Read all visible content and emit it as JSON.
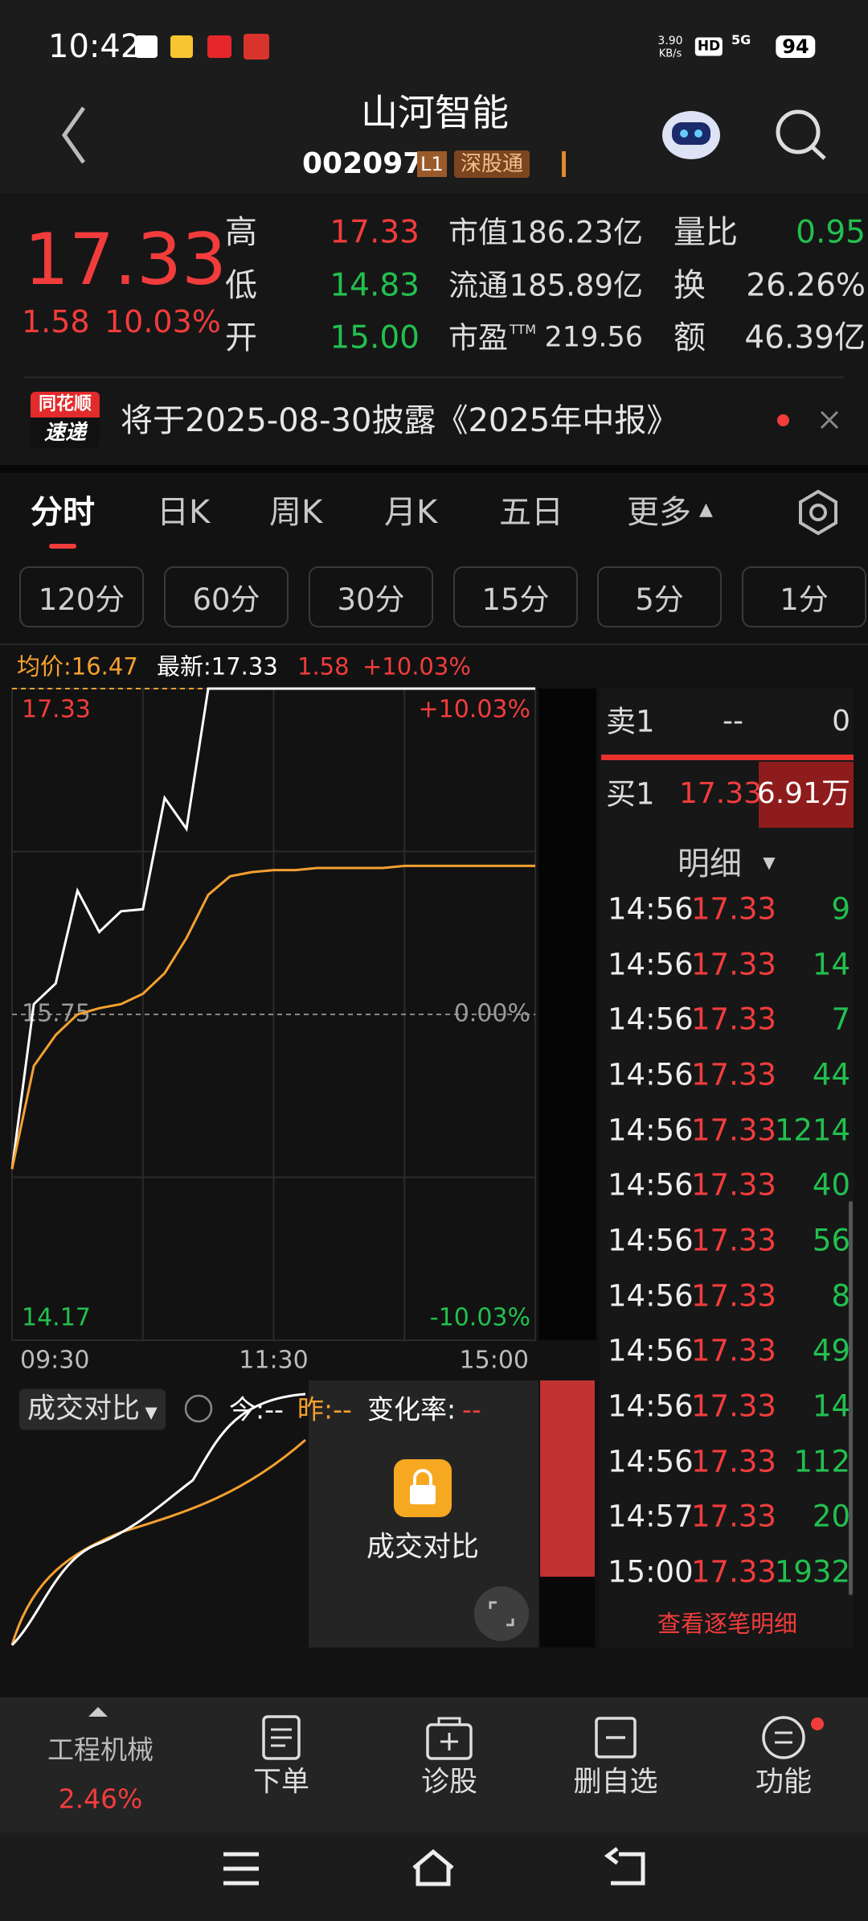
{
  "status_bar": {
    "time": "10:42",
    "speed": "3.90",
    "speed_unit": "KB/s",
    "hd": "HD",
    "network": "5G",
    "battery": "94"
  },
  "header": {
    "title": "山河智能",
    "code": "002097",
    "level": "L1",
    "tag": "深股通"
  },
  "quote": {
    "price": "17.33",
    "change": "1.58",
    "change_pct": "10.03%",
    "high": {
      "label": "高",
      "value": "17.33"
    },
    "low": {
      "label": "低",
      "value": "14.83"
    },
    "open": {
      "label": "开",
      "value": "15.00"
    },
    "market_cap": {
      "label": "市值",
      "value": "186.23亿"
    },
    "float_cap": {
      "label": "流通",
      "value": "185.89亿"
    },
    "pe": {
      "label": "市盈",
      "sup": "TTM",
      "value": "219.56"
    },
    "volume_ratio": {
      "label": "量比",
      "value": "0.95"
    },
    "turnover": {
      "label": "换",
      "value": "26.26%"
    },
    "amount": {
      "label": "额",
      "value": "46.39亿"
    }
  },
  "notice": {
    "badge_top": "同花顺",
    "badge_bottom": "速递",
    "text": "将于2025-08-30披露《2025年中报》"
  },
  "tabs": [
    "分时",
    "日K",
    "周K",
    "月K",
    "五日",
    "更多"
  ],
  "intervals": [
    "120分",
    "60分",
    "30分",
    "15分",
    "5分",
    "1分"
  ],
  "chart_data": {
    "type": "line",
    "avg_label": "均价:16.47",
    "latest_label": "最新:17.33",
    "change": "1.58",
    "change_pct": "+10.03%",
    "categories": [
      "09:30",
      null,
      null,
      null,
      null,
      null,
      null,
      null,
      null,
      null,
      null,
      null,
      "11:30",
      null,
      null,
      null,
      null,
      null,
      null,
      null,
      null,
      null,
      null,
      null,
      "15:00"
    ],
    "series": [
      {
        "color": "#ffffff",
        "values": [
          15.0,
          15.8,
          15.9,
          16.35,
          16.15,
          16.25,
          16.26,
          16.8,
          16.65,
          17.33,
          17.33,
          17.33,
          17.33,
          17.33,
          17.33,
          17.33,
          17.33,
          17.33,
          17.33,
          17.33,
          17.33,
          17.33,
          17.33,
          17.33,
          17.33
        ]
      },
      {
        "color": "#f5a030",
        "values": [
          15.0,
          15.5,
          15.65,
          15.75,
          15.78,
          15.8,
          15.85,
          15.95,
          16.12,
          16.33,
          16.42,
          16.44,
          16.45,
          16.45,
          16.46,
          16.46,
          16.46,
          16.46,
          16.47,
          16.47,
          16.47,
          16.47,
          16.47,
          16.47,
          16.47
        ]
      }
    ],
    "ylim": [
      14.17,
      17.33
    ],
    "yticks": [
      17.33,
      15.75,
      14.17
    ],
    "y2lim": [
      -10.03,
      10.03
    ],
    "y2ticks": [
      {
        "value": 10.03,
        "label": "+10.03%"
      },
      {
        "value": 0,
        "label": "0.00%"
      },
      {
        "value": -10.03,
        "label": "-10.03%"
      }
    ]
  },
  "order_book": {
    "sell1": {
      "label": "卖1",
      "price": "--",
      "volume": "0"
    },
    "buy1": {
      "label": "买1",
      "price": "17.33",
      "volume": "6.91万"
    },
    "detail_title": "明细",
    "trades": [
      {
        "time": "14:56",
        "price": "17.33",
        "volume": "9"
      },
      {
        "time": "14:56",
        "price": "17.33",
        "volume": "14"
      },
      {
        "time": "14:56",
        "price": "17.33",
        "volume": "7"
      },
      {
        "time": "14:56",
        "price": "17.33",
        "volume": "44"
      },
      {
        "time": "14:56",
        "price": "17.33",
        "volume": "1214"
      },
      {
        "time": "14:56",
        "price": "17.33",
        "volume": "40"
      },
      {
        "time": "14:56",
        "price": "17.33",
        "volume": "56"
      },
      {
        "time": "14:56",
        "price": "17.33",
        "volume": "8"
      },
      {
        "time": "14:56",
        "price": "17.33",
        "volume": "49"
      },
      {
        "time": "14:56",
        "price": "17.33",
        "volume": "14"
      },
      {
        "time": "14:56",
        "price": "17.33",
        "volume": "112"
      },
      {
        "time": "14:57",
        "price": "17.33",
        "volume": "20"
      },
      {
        "time": "15:00",
        "price": "17.33",
        "volume": "1932"
      }
    ],
    "more": "查看逐笔明细"
  },
  "volume_compare": {
    "title": "成交对比",
    "today": "今:--",
    "yesterday": "昨:--",
    "change_label": "变化率:",
    "change_value": "--",
    "locked_label": "成交对比"
  },
  "bottom_bar": {
    "sector": "工程机械",
    "sector_change": "2.46%",
    "items": [
      "下单",
      "诊股",
      "删自选",
      "功能"
    ]
  }
}
